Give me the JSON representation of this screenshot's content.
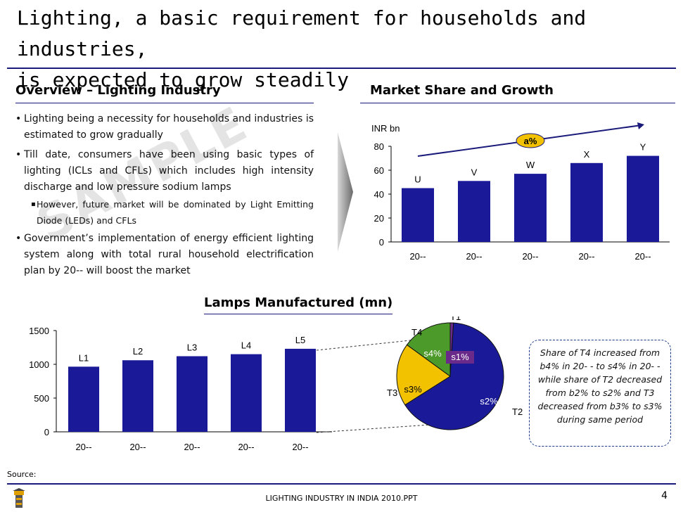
{
  "slide": {
    "title_line1": "Lighting, a basic requirement for households and industries,",
    "title_line2": "is expected to grow steadily",
    "page_number": "4",
    "footer": "LIGHTING INDUSTRY IN INDIA 2010.PPT",
    "source_label": "Source:",
    "watermark": "SAMPLE"
  },
  "overview": {
    "heading": "Overview – Lighting Industry",
    "bullet1": "Lighting being a necessity for households and industries is estimated to grow gradually",
    "bullet2": "Till date, consumers have been using basic types of lighting (ICLs and CFLs) which includes high intensity discharge and low pressure sodium lamps",
    "sub_bullet": "However, future market will be dominated by Light Emitting Diode (LEDs) and CFLs",
    "bullet3": "Government’s implementation of energy efficient lighting system along with total rural household electrification plan by 20-- will boost the market"
  },
  "market_heading": "Market Share and Growth",
  "lamps_heading": "Lamps Manufactured (mn)",
  "note_text": "Share of T4 increased from b4% in 20- - to s4% in 20- - while share of T2 decreased from b2% to s2% and T3 decreased from b3% to s3% during same period",
  "colors": {
    "bar": "#1a1a99",
    "navy": "#1a1a7a",
    "pie_t2": "#1a1a99",
    "pie_t3": "#f2c200",
    "pie_t4": "#4c9a2a",
    "pie_t1": "#6a2a8a",
    "cagr_fill": "#f2c200"
  },
  "chart_data": [
    {
      "type": "bar",
      "name": "market",
      "ylabel": "INR bn",
      "ylim": [
        0,
        80
      ],
      "yticks": [
        0,
        20,
        40,
        60,
        80
      ],
      "categories": [
        "20--",
        "20--",
        "20--",
        "20--",
        "20--"
      ],
      "values": [
        45,
        51,
        57,
        66,
        72
      ],
      "data_labels": [
        "U",
        "V",
        "W",
        "X",
        "Y"
      ],
      "growth_label": "a%"
    },
    {
      "type": "bar",
      "name": "lamps",
      "ylim": [
        0,
        1500
      ],
      "yticks": [
        0,
        500,
        1000,
        1500
      ],
      "categories": [
        "20--",
        "20--",
        "20--",
        "20--",
        "20--"
      ],
      "values": [
        965,
        1060,
        1120,
        1150,
        1230
      ],
      "data_labels": [
        "L1",
        "L2",
        "L3",
        "L4",
        "L5"
      ]
    },
    {
      "type": "pie",
      "name": "share",
      "slices": [
        {
          "label": "T1",
          "value_label": "s1%",
          "value": 1
        },
        {
          "label": "T2",
          "value_label": "s2%",
          "value": 65
        },
        {
          "label": "T3",
          "value_label": "s3%",
          "value": 19
        },
        {
          "label": "T4",
          "value_label": "s4%",
          "value": 15
        }
      ]
    }
  ]
}
